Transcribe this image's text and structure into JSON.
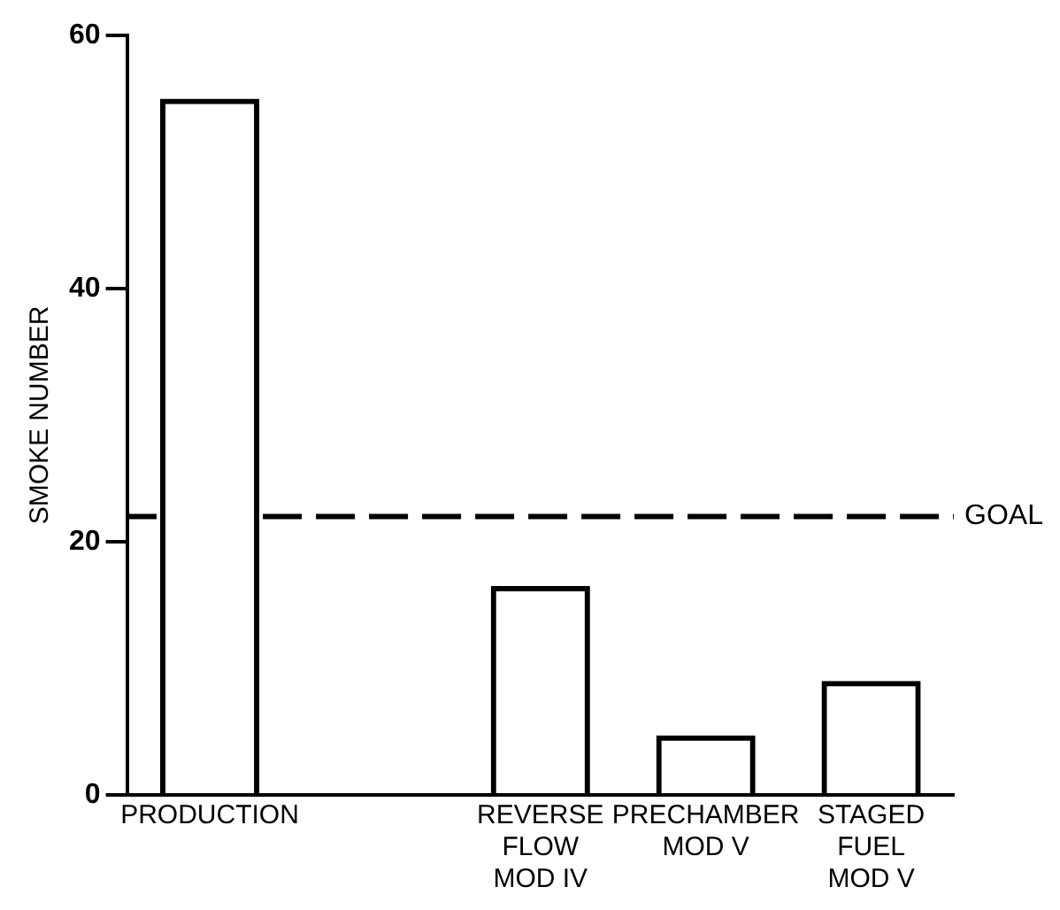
{
  "chart_data": {
    "type": "bar",
    "ylabel": "SMOKE NUMBER",
    "categories": [
      "PRODUCTION",
      null,
      "REVERSE\nFLOW\nMOD IV",
      "PRECHAMBER\nMOD V",
      "STAGED\nFUEL\nMOD V"
    ],
    "values": [
      55,
      null,
      16.5,
      4.7,
      9
    ],
    "color": "#000000",
    "ylim": [
      0,
      60
    ],
    "yticks": [
      0,
      20,
      40,
      60
    ],
    "grid": false,
    "legend": false,
    "ref_lines": [
      {
        "axis": "y",
        "value": 22,
        "label": "GOAL",
        "line_style": "dashed",
        "color": "#000000"
      }
    ]
  }
}
